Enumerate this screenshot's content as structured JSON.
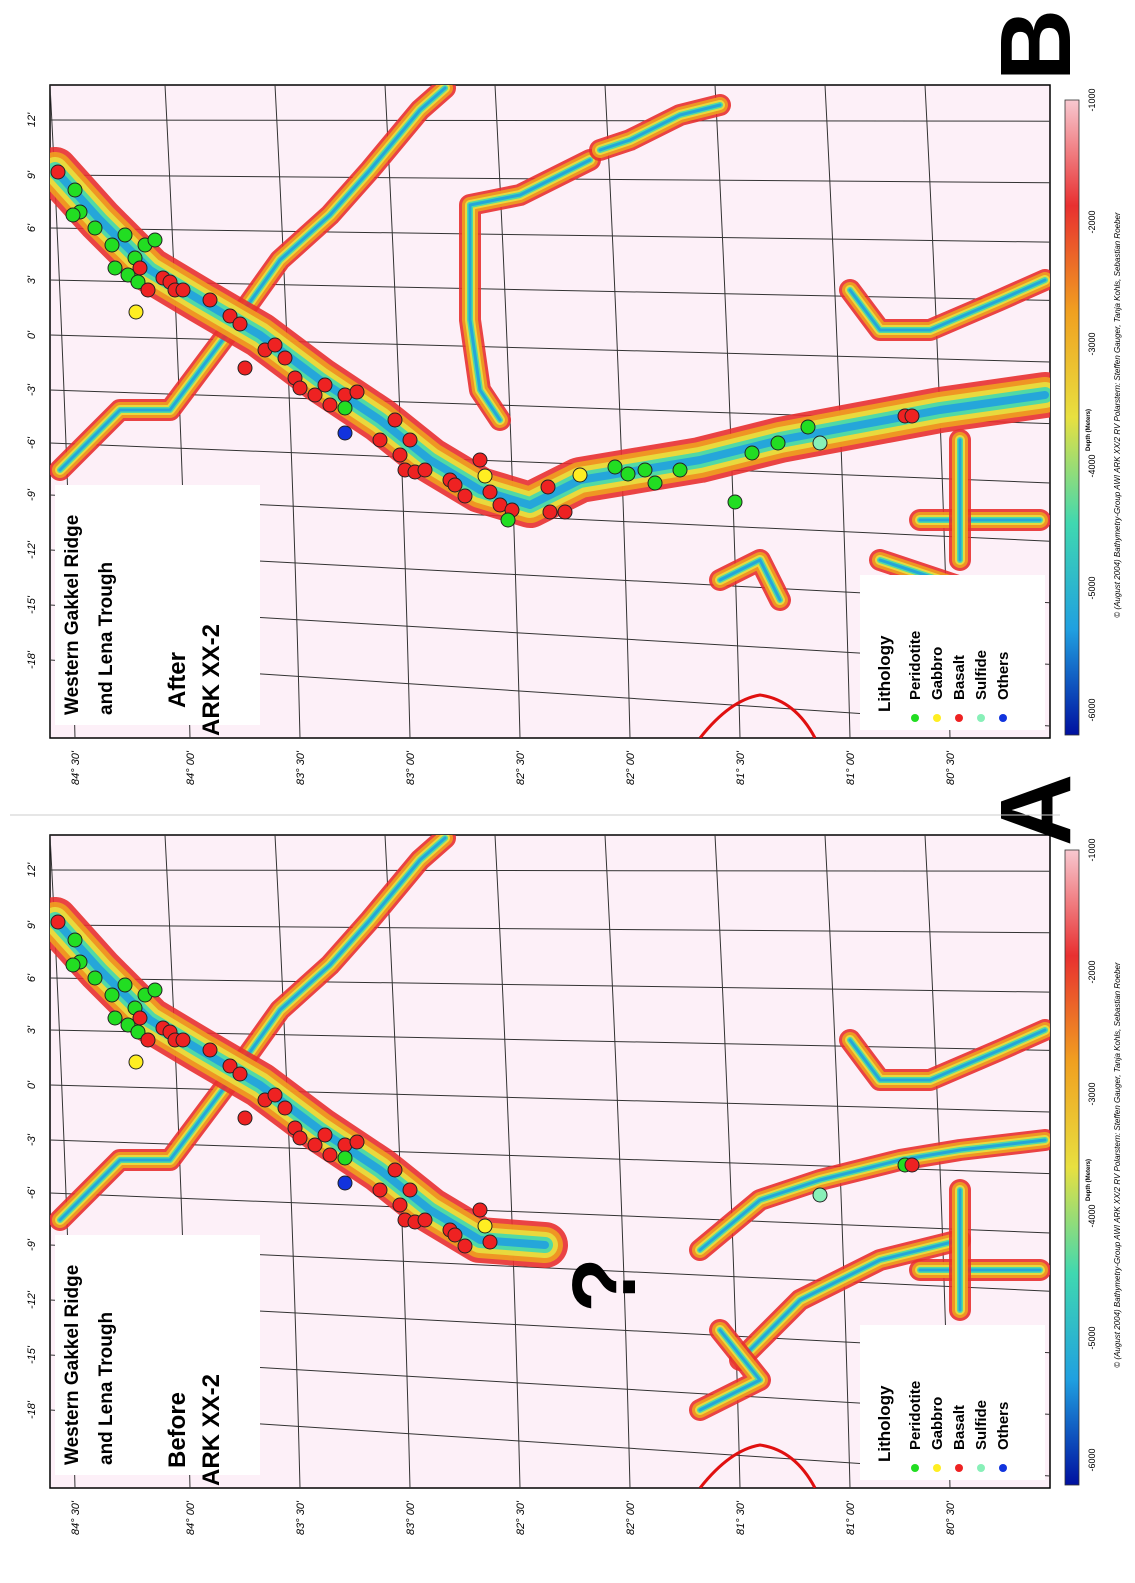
{
  "panels": [
    {
      "label": "A",
      "title": [
        "Western Gakkel Ridge",
        "and Lena Trough"
      ],
      "subtitle": [
        "Before",
        "ARK XX-2"
      ],
      "annotation": "?"
    },
    {
      "label": "B",
      "title": [
        "Western Gakkel Ridge",
        "and Lena Trough"
      ],
      "subtitle": [
        "After",
        "ARK XX-2"
      ]
    }
  ],
  "legend": {
    "title": "Lithology",
    "items": [
      {
        "name": "Peridotite",
        "color": "#22dd22"
      },
      {
        "name": "Gabbro",
        "color": "#ffee22"
      },
      {
        "name": "Basalt",
        "color": "#ee2222"
      },
      {
        "name": "Sulfide",
        "color": "#88f0b8"
      },
      {
        "name": "Others",
        "color": "#1133dd"
      }
    ]
  },
  "latitude_labels": [
    "84° 30'",
    "84° 00'",
    "83° 30'",
    "83° 00'",
    "82° 30'",
    "82° 00'",
    "81° 30'",
    "81° 00'",
    "80° 30'"
  ],
  "longitude_labels": [
    "12'",
    "9'",
    "6'",
    "3'",
    "0'",
    "-3'",
    "-6'",
    "-9'",
    "-12'",
    "-15'",
    "-18'"
  ],
  "colorbar": {
    "title": "Depth (Meters)",
    "labels": [
      "-1000",
      "-2000",
      "-3000",
      "-4000",
      "-5000",
      "-6000"
    ],
    "colors": [
      "#f8c8d0",
      "#e83030",
      "#f0a020",
      "#e8e040",
      "#40d8b0",
      "#20a0e0",
      "#0010a0"
    ]
  },
  "credit": "© (August 2004) Bathymetry-Group AWI ARK XX/2 RV Polarstern: Steffen Gauger, Tanja Kohls, Sebastian Roeber"
}
